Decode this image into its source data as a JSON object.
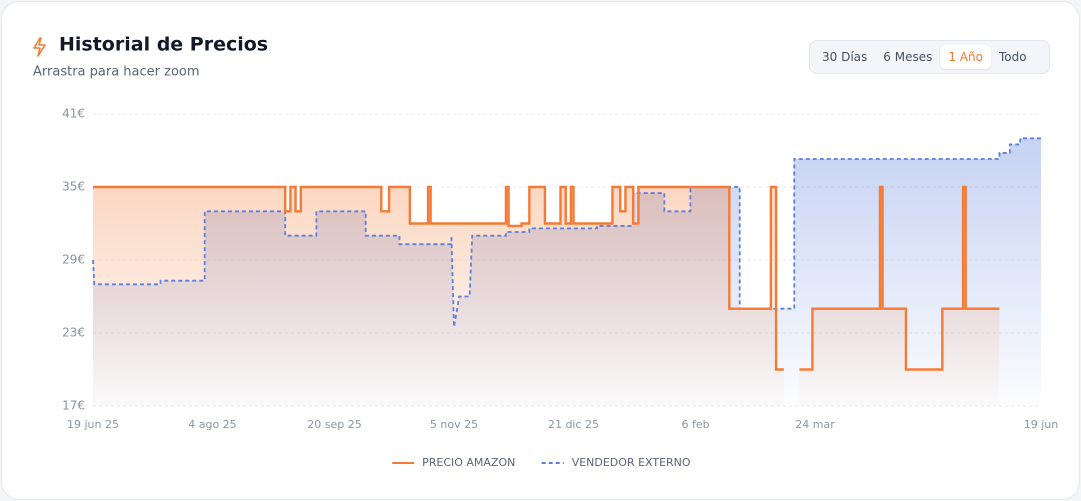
{
  "chart_data": {
    "type": "line",
    "title": "Historial de Precios",
    "subtitle": "Arrastra para hacer zoom",
    "xlim": [
      0,
      365
    ],
    "xticks": [
      {
        "value": 0,
        "label": "19 jun 25"
      },
      {
        "value": 46,
        "label": "4 ago 25"
      },
      {
        "value": 93,
        "label": "20 sep 25"
      },
      {
        "value": 139,
        "label": "5 nov 25"
      },
      {
        "value": 185,
        "label": "21 dic 25"
      },
      {
        "value": 232,
        "label": "6 feb"
      },
      {
        "value": 278,
        "label": "24 mar"
      },
      {
        "value": 365,
        "label": "19 jun"
      }
    ],
    "ylim": [
      17,
      41
    ],
    "yticks": [
      {
        "value": 17,
        "label": "17€"
      },
      {
        "value": 23,
        "label": "23€"
      },
      {
        "value": 29,
        "label": "29€"
      },
      {
        "value": 35,
        "label": "35€"
      },
      {
        "value": 41,
        "label": "41€"
      }
    ],
    "grid": true,
    "step": true,
    "series": [
      {
        "name": "PRECIO AMAZON",
        "color": "#f47b35",
        "dash": false,
        "x": [
          0,
          74,
          74,
          76,
          76,
          78,
          78,
          80,
          80,
          111,
          111,
          114,
          114,
          122,
          122,
          129,
          129,
          130,
          130,
          159,
          159,
          160,
          160,
          165,
          165,
          168,
          168,
          174,
          174,
          180,
          180,
          182,
          182,
          184,
          184,
          185,
          185,
          200,
          200,
          203,
          203,
          205,
          205,
          208,
          208,
          210,
          210,
          245,
          245,
          261,
          261,
          263,
          263,
          266,
          269,
          272,
          277,
          277,
          303,
          303,
          304,
          304,
          313,
          313,
          327,
          327,
          335,
          335,
          336,
          336,
          349
        ],
        "values": [
          35,
          35,
          33,
          33,
          35,
          35,
          33,
          33,
          35,
          35,
          33,
          33,
          35,
          35,
          32,
          32,
          35,
          35,
          32,
          32,
          35,
          35,
          31.8,
          31.8,
          32,
          32,
          35,
          35,
          32,
          32,
          35,
          35,
          32,
          32,
          35,
          35,
          32,
          32,
          35,
          35,
          33,
          33,
          35,
          35,
          32,
          32,
          35,
          35,
          25,
          25,
          35,
          35,
          20,
          20,
          null,
          20,
          20,
          25,
          25,
          35,
          35,
          25,
          25,
          20,
          20,
          25,
          25,
          35,
          35,
          25,
          25
        ]
      },
      {
        "name": "VENDEDOR EXTERNO",
        "color": "#5b7fdc",
        "dash": true,
        "x": [
          0,
          0.5,
          26,
          26,
          43,
          43,
          74,
          74,
          86,
          86,
          105,
          105,
          118,
          118,
          138,
          138,
          139,
          141,
          145,
          146,
          159,
          159,
          168,
          168,
          194,
          194,
          208,
          208,
          220,
          220,
          230,
          230,
          249,
          249,
          270,
          270,
          349,
          349,
          353,
          353,
          357,
          357,
          365
        ],
        "values": [
          29,
          27,
          27,
          27.3,
          27.3,
          33,
          33,
          31,
          31,
          33,
          33,
          31,
          31,
          30.3,
          30.3,
          31,
          23.5,
          26,
          26,
          31,
          31,
          31.3,
          31.3,
          31.6,
          31.6,
          31.8,
          31.8,
          34.5,
          34.5,
          33,
          33,
          35,
          35,
          25,
          25,
          37.3,
          37.3,
          37.8,
          37.8,
          38.5,
          38.5,
          39,
          39
        ]
      }
    ]
  },
  "controls": {
    "ranges": [
      "30 Días",
      "6 Meses",
      "1 Año",
      "Todo"
    ],
    "active": 2
  }
}
